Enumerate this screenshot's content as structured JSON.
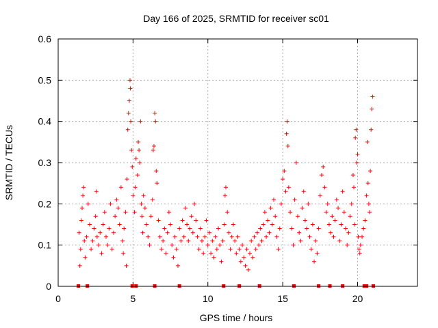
{
  "chart_data": {
    "type": "scatter",
    "title": "Day 166 of 2025, SRMTID for receiver sc01",
    "xlabel": "GPS time / hours",
    "ylabel": "SRMTID / TECUs",
    "xlim": [
      0,
      24
    ],
    "ylim": [
      0,
      0.6
    ],
    "x_ticks": [
      0,
      5,
      10,
      15,
      20
    ],
    "x_tick_labels": [
      "0",
      "5",
      "10",
      "15",
      "20"
    ],
    "y_ticks": [
      0,
      0.1,
      0.2,
      0.3,
      0.4,
      0.5,
      0.6
    ],
    "y_tick_labels": [
      "0",
      "0.1",
      "0.2",
      "0.3",
      "0.4",
      "0.5",
      "0.6"
    ],
    "grid": true,
    "marker": "plus",
    "color": "#ff0000",
    "series": [
      {
        "name": "SRMTID",
        "points": [
          [
            1.4,
            0.13
          ],
          [
            1.45,
            0.05
          ],
          [
            1.5,
            0.09
          ],
          [
            1.55,
            0.16
          ],
          [
            1.6,
            0.19
          ],
          [
            1.65,
            0.22
          ],
          [
            1.7,
            0.24
          ],
          [
            1.75,
            0.11
          ],
          [
            1.8,
            0.07
          ],
          [
            1.9,
            0.12
          ],
          [
            2.0,
            0.2
          ],
          [
            2.1,
            0.15
          ],
          [
            2.2,
            0.09
          ],
          [
            2.3,
            0.11
          ],
          [
            2.4,
            0.14
          ],
          [
            2.5,
            0.17
          ],
          [
            2.55,
            0.23
          ],
          [
            2.6,
            0.12
          ],
          [
            2.7,
            0.1
          ],
          [
            2.8,
            0.13
          ],
          [
            2.9,
            0.08
          ],
          [
            3.0,
            0.15
          ],
          [
            3.1,
            0.18
          ],
          [
            3.2,
            0.12
          ],
          [
            3.3,
            0.1
          ],
          [
            3.4,
            0.14
          ],
          [
            3.5,
            0.2
          ],
          [
            3.6,
            0.09
          ],
          [
            3.7,
            0.13
          ],
          [
            3.8,
            0.17
          ],
          [
            3.9,
            0.21
          ],
          [
            4.0,
            0.19
          ],
          [
            4.1,
            0.15
          ],
          [
            4.2,
            0.24
          ],
          [
            4.3,
            0.11
          ],
          [
            4.35,
            0.08
          ],
          [
            4.4,
            0.14
          ],
          [
            4.5,
            0.18
          ],
          [
            4.55,
            0.05
          ],
          [
            4.6,
            0.26
          ],
          [
            4.65,
            0.38
          ],
          [
            4.7,
            0.42
          ],
          [
            4.75,
            0.45
          ],
          [
            4.8,
            0.5
          ],
          [
            4.82,
            0.48
          ],
          [
            4.85,
            0.4
          ],
          [
            4.9,
            0.33
          ],
          [
            4.95,
            0.29
          ],
          [
            5.0,
            0.22
          ],
          [
            5.1,
            0.18
          ],
          [
            5.15,
            0.24
          ],
          [
            5.2,
            0.31
          ],
          [
            5.3,
            0.27
          ],
          [
            5.35,
            0.35
          ],
          [
            5.4,
            0.33
          ],
          [
            5.45,
            0.3
          ],
          [
            5.5,
            0.4
          ],
          [
            5.55,
            0.2
          ],
          [
            5.6,
            0.17
          ],
          [
            5.65,
            0.13
          ],
          [
            5.7,
            0.22
          ],
          [
            5.8,
            0.19
          ],
          [
            5.9,
            0.15
          ],
          [
            6.0,
            0.12
          ],
          [
            6.1,
            0.1
          ],
          [
            6.2,
            0.17
          ],
          [
            6.3,
            0.21
          ],
          [
            6.35,
            0.33
          ],
          [
            6.4,
            0.34
          ],
          [
            6.45,
            0.42
          ],
          [
            6.5,
            0.4
          ],
          [
            6.55,
            0.28
          ],
          [
            6.6,
            0.25
          ],
          [
            6.7,
            0.16
          ],
          [
            6.8,
            0.12
          ],
          [
            6.9,
            0.09
          ],
          [
            7.0,
            0.11
          ],
          [
            7.1,
            0.14
          ],
          [
            7.2,
            0.08
          ],
          [
            7.3,
            0.13
          ],
          [
            7.4,
            0.18
          ],
          [
            7.5,
            0.15
          ],
          [
            7.6,
            0.1
          ],
          [
            7.7,
            0.07
          ],
          [
            7.8,
            0.12
          ],
          [
            7.9,
            0.09
          ],
          [
            8.0,
            0.05
          ],
          [
            8.1,
            0.14
          ],
          [
            8.2,
            0.11
          ],
          [
            8.3,
            0.16
          ],
          [
            8.4,
            0.12
          ],
          [
            8.5,
            0.19
          ],
          [
            8.6,
            0.15
          ],
          [
            8.7,
            0.11
          ],
          [
            8.8,
            0.14
          ],
          [
            8.9,
            0.17
          ],
          [
            9.0,
            0.13
          ],
          [
            9.1,
            0.2
          ],
          [
            9.2,
            0.16
          ],
          [
            9.3,
            0.12
          ],
          [
            9.4,
            0.09
          ],
          [
            9.5,
            0.14
          ],
          [
            9.6,
            0.11
          ],
          [
            9.7,
            0.08
          ],
          [
            9.8,
            0.12
          ],
          [
            9.9,
            0.16
          ],
          [
            10.0,
            0.1
          ],
          [
            10.1,
            0.13
          ],
          [
            10.2,
            0.08
          ],
          [
            10.3,
            0.11
          ],
          [
            10.4,
            0.07
          ],
          [
            10.5,
            0.12
          ],
          [
            10.6,
            0.09
          ],
          [
            10.7,
            0.14
          ],
          [
            10.8,
            0.1
          ],
          [
            10.9,
            0.06
          ],
          [
            11.0,
            0.11
          ],
          [
            11.1,
            0.15
          ],
          [
            11.15,
            0.22
          ],
          [
            11.2,
            0.24
          ],
          [
            11.3,
            0.18
          ],
          [
            11.4,
            0.13
          ],
          [
            11.5,
            0.09
          ],
          [
            11.6,
            0.12
          ],
          [
            11.7,
            0.15
          ],
          [
            11.8,
            0.11
          ],
          [
            11.9,
            0.08
          ],
          [
            12.0,
            0.12
          ],
          [
            12.1,
            0.09
          ],
          [
            12.2,
            0.06
          ],
          [
            12.3,
            0.1
          ],
          [
            12.4,
            0.07
          ],
          [
            12.5,
            0.05
          ],
          [
            12.6,
            0.09
          ],
          [
            12.7,
            0.04
          ],
          [
            12.8,
            0.08
          ],
          [
            12.9,
            0.11
          ],
          [
            13.0,
            0.07
          ],
          [
            13.1,
            0.12
          ],
          [
            13.2,
            0.09
          ],
          [
            13.3,
            0.13
          ],
          [
            13.4,
            0.1
          ],
          [
            13.5,
            0.14
          ],
          [
            13.6,
            0.11
          ],
          [
            13.7,
            0.15
          ],
          [
            13.8,
            0.18
          ],
          [
            13.9,
            0.12
          ],
          [
            14.0,
            0.16
          ],
          [
            14.1,
            0.13
          ],
          [
            14.2,
            0.19
          ],
          [
            14.3,
            0.15
          ],
          [
            14.4,
            0.21
          ],
          [
            14.5,
            0.17
          ],
          [
            14.6,
            0.12
          ],
          [
            14.7,
            0.09
          ],
          [
            14.8,
            0.14
          ],
          [
            14.9,
            0.2
          ],
          [
            15.0,
            0.26
          ],
          [
            15.1,
            0.28
          ],
          [
            15.2,
            0.23
          ],
          [
            15.25,
            0.37
          ],
          [
            15.3,
            0.4
          ],
          [
            15.35,
            0.34
          ],
          [
            15.4,
            0.24
          ],
          [
            15.5,
            0.18
          ],
          [
            15.6,
            0.14
          ],
          [
            15.7,
            0.1
          ],
          [
            15.8,
            0.21
          ],
          [
            15.9,
            0.3
          ],
          [
            16.0,
            0.17
          ],
          [
            16.1,
            0.13
          ],
          [
            16.2,
            0.11
          ],
          [
            16.3,
            0.19
          ],
          [
            16.4,
            0.23
          ],
          [
            16.5,
            0.16
          ],
          [
            16.6,
            0.14
          ],
          [
            16.7,
            0.2
          ],
          [
            16.8,
            0.12
          ],
          [
            16.9,
            0.09
          ],
          [
            17.0,
            0.15
          ],
          [
            17.1,
            0.06
          ],
          [
            17.2,
            0.11
          ],
          [
            17.3,
            0.08
          ],
          [
            17.4,
            0.14
          ],
          [
            17.5,
            0.22
          ],
          [
            17.6,
            0.27
          ],
          [
            17.7,
            0.29
          ],
          [
            17.8,
            0.24
          ],
          [
            17.9,
            0.18
          ],
          [
            18.0,
            0.2
          ],
          [
            18.1,
            0.15
          ],
          [
            18.2,
            0.13
          ],
          [
            18.3,
            0.17
          ],
          [
            18.4,
            0.12
          ],
          [
            18.5,
            0.16
          ],
          [
            18.6,
            0.21
          ],
          [
            18.7,
            0.19
          ],
          [
            18.8,
            0.11
          ],
          [
            18.9,
            0.15
          ],
          [
            19.0,
            0.23
          ],
          [
            19.1,
            0.18
          ],
          [
            19.2,
            0.14
          ],
          [
            19.3,
            0.1
          ],
          [
            19.4,
            0.13
          ],
          [
            19.5,
            0.17
          ],
          [
            19.6,
            0.2
          ],
          [
            19.7,
            0.27
          ],
          [
            19.75,
            0.24
          ],
          [
            19.8,
            0.15
          ],
          [
            19.85,
            0.36
          ],
          [
            19.9,
            0.38
          ],
          [
            19.95,
            0.3
          ],
          [
            20.0,
            0.32
          ],
          [
            20.05,
            0.12
          ],
          [
            20.1,
            0.09
          ],
          [
            20.15,
            0.08
          ],
          [
            20.2,
            0.1
          ],
          [
            20.3,
            0.12
          ],
          [
            20.4,
            0.14
          ],
          [
            20.5,
            0.16
          ],
          [
            20.6,
            0.22
          ],
          [
            20.65,
            0.35
          ],
          [
            20.7,
            0.25
          ],
          [
            20.75,
            0.2
          ],
          [
            20.8,
            0.18
          ],
          [
            20.85,
            0.28
          ],
          [
            20.9,
            0.38
          ],
          [
            20.95,
            0.43
          ],
          [
            21.0,
            0.46
          ]
        ]
      }
    ],
    "baseline_marks": [
      1.35,
      1.95,
      4.95,
      5.2,
      6.45,
      8.1,
      11.05,
      12.1,
      13.45,
      15.75,
      17.4,
      18.15,
      19.0,
      20.45,
      20.6,
      21.05
    ]
  }
}
